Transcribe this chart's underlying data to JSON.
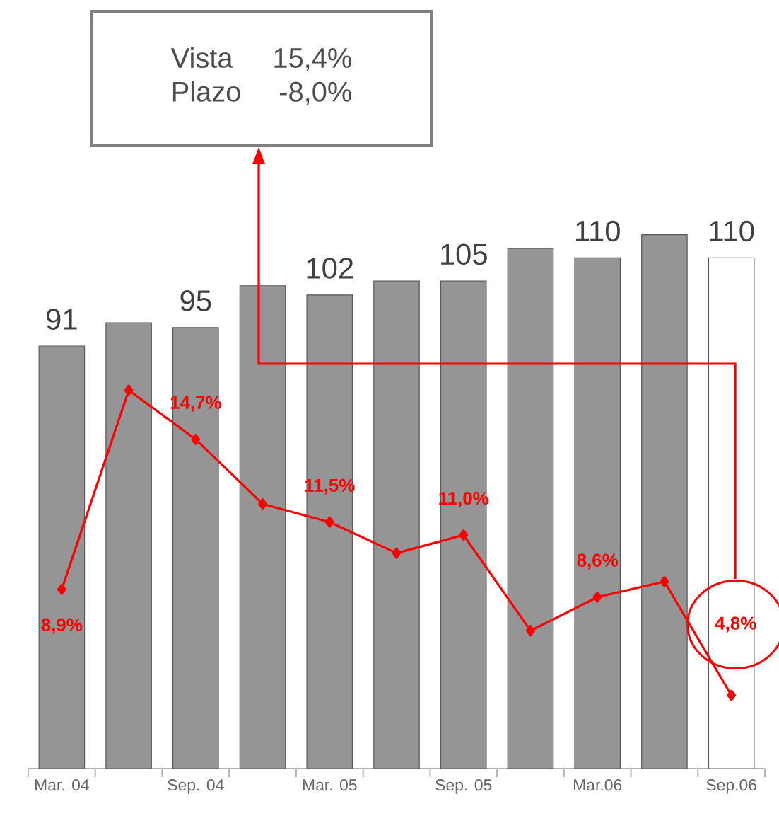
{
  "chart_data": {
    "type": "bar",
    "categories": [
      "Mar. 04",
      null,
      "Sep. 04",
      null,
      "Mar. 05",
      null,
      "Sep. 05",
      null,
      "Mar.06",
      null,
      "Sep.06"
    ],
    "tick_labels": "x",
    "marker": "diamond",
    "series": [
      {
        "colors": [
          "#959595",
          "#959595",
          "#959595",
          "#959595",
          "#959595",
          "#959595",
          "#959595",
          "#959595",
          "#959595",
          "#959595",
          "#ffffff"
        ],
        "values": [
          91,
          96,
          95,
          104,
          102,
          105,
          105,
          112,
          110,
          115,
          110
        ],
        "value_labels": [
          "91",
          null,
          "95",
          null,
          "102",
          null,
          "105",
          null,
          "110",
          null,
          "110"
        ]
      },
      {
        "type": "line",
        "axis": "y2",
        "color": "#ff0000",
        "values": [
          8.9,
          16.6,
          14.7,
          12.2,
          11.5,
          10.3,
          11.0,
          7.3,
          8.6,
          9.2,
          4.8
        ],
        "value_labels": [
          "8,9%",
          null,
          "14,7%",
          null,
          "11,5%",
          null,
          "11,0%",
          null,
          "8,6%",
          null,
          "4,8%"
        ]
      }
    ],
    "annotations": [
      "Vista",
      "15,4%",
      "Plazo",
      "-8,0%"
    ]
  }
}
